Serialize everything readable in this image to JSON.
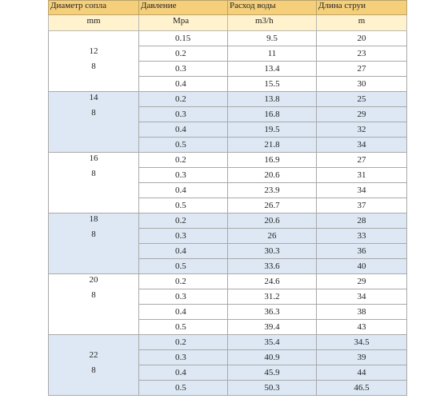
{
  "headers": {
    "diameter": "Диаметр сопла",
    "pressure": "Давление",
    "flow": "Расход воды",
    "jet": "Длина струи"
  },
  "units": {
    "diameter": "mm",
    "pressure": "Mpa",
    "flow": "m3/h",
    "jet": "m"
  },
  "groups": [
    {
      "diameter": "12",
      "second": "8",
      "rows": [
        {
          "pressure": "0.15",
          "flow": "9.5",
          "jet": "20"
        },
        {
          "pressure": "0.2",
          "flow": "11",
          "jet": "23"
        },
        {
          "pressure": "0.3",
          "flow": "13.4",
          "jet": "27"
        },
        {
          "pressure": "0.4",
          "flow": "15.5",
          "jet": "30"
        }
      ]
    },
    {
      "diameter": "14",
      "second": "8",
      "rows": [
        {
          "pressure": "0.2",
          "flow": "13.8",
          "jet": "25"
        },
        {
          "pressure": "0.3",
          "flow": "16.8",
          "jet": "29"
        },
        {
          "pressure": "0.4",
          "flow": "19.5",
          "jet": "32"
        },
        {
          "pressure": "0.5",
          "flow": "21.8",
          "jet": "34"
        }
      ]
    },
    {
      "diameter": "16",
      "second": "8",
      "rows": [
        {
          "pressure": "0.2",
          "flow": "16.9",
          "jet": "27"
        },
        {
          "pressure": "0.3",
          "flow": "20.6",
          "jet": "31"
        },
        {
          "pressure": "0.4",
          "flow": "23.9",
          "jet": "34"
        },
        {
          "pressure": "0.5",
          "flow": "26.7",
          "jet": "37"
        }
      ]
    },
    {
      "diameter": "18",
      "second": "8",
      "rows": [
        {
          "pressure": "0.2",
          "flow": "20.6",
          "jet": "28"
        },
        {
          "pressure": "0.3",
          "flow": "26",
          "jet": "33"
        },
        {
          "pressure": "0.4",
          "flow": "30.3",
          "jet": "36"
        },
        {
          "pressure": "0.5",
          "flow": "33.6",
          "jet": "40"
        }
      ]
    },
    {
      "diameter": "20",
      "second": "8",
      "rows": [
        {
          "pressure": "0.2",
          "flow": "24.6",
          "jet": "29"
        },
        {
          "pressure": "0.3",
          "flow": "31.2",
          "jet": "34"
        },
        {
          "pressure": "0.4",
          "flow": "36.3",
          "jet": "38"
        },
        {
          "pressure": "0.5",
          "flow": "39.4",
          "jet": "43"
        }
      ]
    },
    {
      "diameter": "22",
      "second": "8",
      "rows": [
        {
          "pressure": "0.2",
          "flow": "35.4",
          "jet": "34.5"
        },
        {
          "pressure": "0.3",
          "flow": "40.9",
          "jet": "39"
        },
        {
          "pressure": "0.4",
          "flow": "45.9",
          "jet": "44"
        },
        {
          "pressure": "0.5",
          "flow": "50.3",
          "jet": "46.5"
        }
      ]
    }
  ]
}
